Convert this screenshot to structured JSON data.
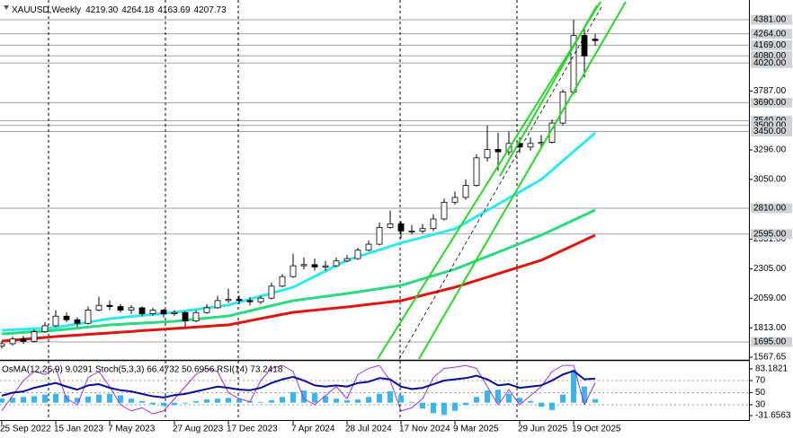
{
  "chart_data": [
    {
      "type": "candlestick",
      "title": "XAUUSD,Weekly",
      "ohlc_labels": [
        "4219.30",
        "4264.18",
        "4163.69",
        "4207.73"
      ],
      "categories": [
        "25 Sep 2022",
        null,
        null,
        null,
        null,
        "15 Jan 2023",
        null,
        null,
        null,
        null,
        "7 May 2023",
        null,
        null,
        null,
        null,
        null,
        "27 Aug 2023",
        null,
        null,
        null,
        null,
        "17 Dec 2023",
        null,
        null,
        null,
        null,
        null,
        "7 Apr 2024",
        null,
        null,
        null,
        null,
        "28 Jul 2024",
        null,
        null,
        null,
        null,
        "17 Nov 2024",
        null,
        null,
        null,
        null,
        "9 Mar 2025",
        null,
        null,
        null,
        null,
        null,
        "29 Jun 2025",
        null,
        null,
        null,
        null,
        "19 Oct 2025",
        null,
        null
      ],
      "open": [
        1660,
        1680,
        1720,
        1700,
        1780,
        1830,
        1910,
        1880,
        1850,
        1960,
        2000,
        1990,
        1960,
        1980,
        1930,
        1960,
        1930,
        1940,
        1870,
        1940,
        1980,
        2040,
        2050,
        2040,
        2030,
        2060,
        2160,
        2240,
        2330,
        2340,
        2320,
        2330,
        2370,
        2390,
        2460,
        2510,
        2650,
        2680,
        2620,
        2620,
        2640,
        2720,
        2860,
        2900,
        3000,
        3230,
        3300,
        3280,
        3350,
        3320,
        3350,
        3360,
        3520,
        3780,
        4250,
        4219.3
      ],
      "high": [
        1700,
        1740,
        1745,
        1800,
        1860,
        1960,
        1940,
        1900,
        1990,
        2070,
        2040,
        2010,
        2000,
        1990,
        1980,
        1970,
        1960,
        1950,
        1960,
        2010,
        2080,
        2140,
        2080,
        2070,
        2080,
        2190,
        2260,
        2430,
        2400,
        2390,
        2370,
        2400,
        2420,
        2480,
        2540,
        2690,
        2790,
        2700,
        2670,
        2680,
        2760,
        2890,
        2950,
        3050,
        3260,
        3500,
        3440,
        3450,
        3400,
        3400,
        3420,
        3550,
        3800,
        4381,
        4300,
        4264.18
      ],
      "low": [
        1640,
        1665,
        1680,
        1690,
        1770,
        1820,
        1860,
        1820,
        1840,
        1950,
        1960,
        1940,
        1930,
        1910,
        1915,
        1900,
        1910,
        1820,
        1860,
        1930,
        1970,
        2020,
        2010,
        2000,
        2010,
        2050,
        2150,
        2230,
        2300,
        2290,
        2290,
        2320,
        2360,
        2380,
        2450,
        2500,
        2640,
        2560,
        2590,
        2600,
        2620,
        2710,
        2840,
        2880,
        2990,
        3200,
        3120,
        3250,
        3270,
        3290,
        3310,
        3350,
        3500,
        3760,
        3900,
        4163.69
      ],
      "close": [
        1680,
        1720,
        1700,
        1780,
        1830,
        1910,
        1880,
        1850,
        1960,
        2000,
        1990,
        1960,
        1980,
        1930,
        1960,
        1930,
        1940,
        1870,
        1940,
        1980,
        2040,
        2050,
        2040,
        2030,
        2060,
        2160,
        2240,
        2330,
        2340,
        2320,
        2330,
        2370,
        2390,
        2460,
        2510,
        2650,
        2680,
        2620,
        2620,
        2640,
        2720,
        2860,
        2900,
        3000,
        3230,
        3300,
        3280,
        3350,
        3320,
        3350,
        3360,
        3520,
        3780,
        4250,
        4080,
        4207.73
      ],
      "up_color": "#ffffff",
      "down_color": "#000000",
      "lines": [
        {
          "color": "#2ee8ee",
          "values": [
            1792,
            1797,
            1801,
            1806,
            1810,
            1815,
            1830,
            1845,
            1859,
            1874,
            1889,
            1898,
            1907,
            1916,
            1924,
            1933,
            1942,
            1954,
            1966,
            1978,
            1990,
            2002,
            2027,
            2052,
            2077,
            2101,
            2126,
            2151,
            2196,
            2241,
            2286,
            2331,
            2376,
            2405,
            2434,
            2462,
            2491,
            2520,
            2544,
            2567,
            2591,
            2614,
            2638,
            2689,
            2741,
            2792,
            2843,
            2895,
            2946,
            2998,
            3049,
            3127,
            3205,
            3282,
            3360,
            3438
          ]
        },
        {
          "color": "#2bd97f",
          "values": [
            1762,
            1768,
            1774,
            1780,
            1786,
            1792,
            1801,
            1810,
            1819,
            1828,
            1837,
            1842,
            1847,
            1852,
            1857,
            1862,
            1867,
            1876,
            1885,
            1894,
            1903,
            1912,
            1933,
            1954,
            1976,
            1997,
            2018,
            2039,
            2051,
            2063,
            2075,
            2087,
            2099,
            2112,
            2126,
            2139,
            2153,
            2166,
            2193,
            2220,
            2247,
            2274,
            2301,
            2337,
            2372,
            2408,
            2443,
            2479,
            2514,
            2550,
            2585,
            2627,
            2669,
            2711,
            2753,
            2795
          ]
        },
        {
          "color": "#e0160e",
          "values": [
            1702,
            1710,
            1717,
            1725,
            1732,
            1740,
            1746,
            1752,
            1758,
            1764,
            1770,
            1776,
            1782,
            1789,
            1795,
            1801,
            1807,
            1813,
            1819,
            1825,
            1831,
            1837,
            1855,
            1872,
            1890,
            1907,
            1925,
            1942,
            1951,
            1960,
            1969,
            1978,
            1987,
            1997,
            2008,
            2018,
            2029,
            2039,
            2061,
            2084,
            2106,
            2129,
            2151,
            2179,
            2207,
            2235,
            2264,
            2292,
            2320,
            2348,
            2376,
            2418,
            2460,
            2501,
            2543,
            2585
          ]
        }
      ],
      "ylim": [
        1567.65,
        4516
      ],
      "yticks": [
        {
          "value": 3787,
          "label": "3787.00"
        },
        {
          "value": 3296,
          "label": "3296.00"
        },
        {
          "value": 3050,
          "label": "3050.00"
        },
        {
          "value": 2551,
          "label": "2551.00"
        },
        {
          "value": 2305,
          "label": "2305.00"
        },
        {
          "value": 2059,
          "label": "2059.00"
        },
        {
          "value": 1813,
          "label": "1813.00"
        },
        1567.65
      ],
      "levels": [
        {
          "value": 4381,
          "label": "4381.00"
        },
        {
          "value": 4264,
          "label": "4264.00"
        },
        {
          "value": 4169,
          "label": "4169.00"
        },
        {
          "value": 4080,
          "label": "4080.00"
        },
        {
          "value": 4020,
          "label": "4020.00"
        },
        {
          "value": 3690,
          "label": "3690.00"
        },
        {
          "value": 3540,
          "label": "3540.00"
        },
        {
          "value": 3500,
          "label": "3500.00"
        },
        {
          "value": 3450,
          "label": "3450.00"
        },
        {
          "value": 2810,
          "label": "2810.00"
        },
        {
          "value": 2595,
          "label": "2595.00"
        },
        {
          "value": 1695,
          "label": "1695.00"
        }
      ],
      "level_color": "#9aa3ad"
    },
    {
      "type": "bar",
      "title": "OsMA(12,26,9) 9.0291 Stoch(5,3,3) 66.4732 50.6956 RSI(14) 73.2418",
      "values": [
        10,
        12,
        14,
        16,
        20,
        22,
        18,
        12,
        15,
        20,
        22,
        18,
        10,
        4,
        -4,
        -8,
        -6,
        -2,
        4,
        8,
        10,
        12,
        8,
        4,
        2,
        6,
        14,
        26,
        30,
        24,
        16,
        10,
        6,
        8,
        14,
        22,
        28,
        18,
        2,
        -14,
        -26,
        -30,
        -20,
        -6,
        14,
        30,
        32,
        22,
        12,
        4,
        -10,
        -18,
        20,
        80,
        40,
        9.0291
      ],
      "color": "#38b6f0",
      "ylim": [
        -31.6563,
        83.1821
      ],
      "yticks": [
        83.1821,
        -31.6563
      ],
      "y2lim": [
        0,
        100
      ],
      "y2ticks": [
        70,
        50,
        30
      ],
      "lines": [
        {
          "color": "#9b30d9",
          "axis": "y2",
          "values": [
            20,
            45,
            70,
            85,
            80,
            90,
            40,
            30,
            75,
            85,
            60,
            30,
            20,
            25,
            15,
            20,
            40,
            60,
            80,
            90,
            85,
            50,
            40,
            35,
            70,
            90,
            95,
            85,
            40,
            30,
            45,
            60,
            40,
            80,
            90,
            95,
            70,
            20,
            25,
            40,
            75,
            90,
            92,
            95,
            90,
            60,
            30,
            55,
            30,
            45,
            60,
            85,
            95,
            95,
            30,
            66.4732
          ]
        },
        {
          "color": "#0b0b9a",
          "axis": "y2",
          "values": [
            45,
            50,
            52,
            58,
            62,
            66,
            60,
            55,
            62,
            64,
            58,
            54,
            52,
            48,
            44,
            42,
            46,
            48,
            52,
            56,
            60,
            58,
            55,
            54,
            58,
            66,
            72,
            76,
            70,
            62,
            60,
            62,
            60,
            66,
            68,
            74,
            72,
            60,
            56,
            58,
            64,
            70,
            72,
            74,
            78,
            72,
            62,
            64,
            58,
            60,
            62,
            70,
            80,
            86,
            72,
            73.2418
          ]
        }
      ]
    }
  ]
}
